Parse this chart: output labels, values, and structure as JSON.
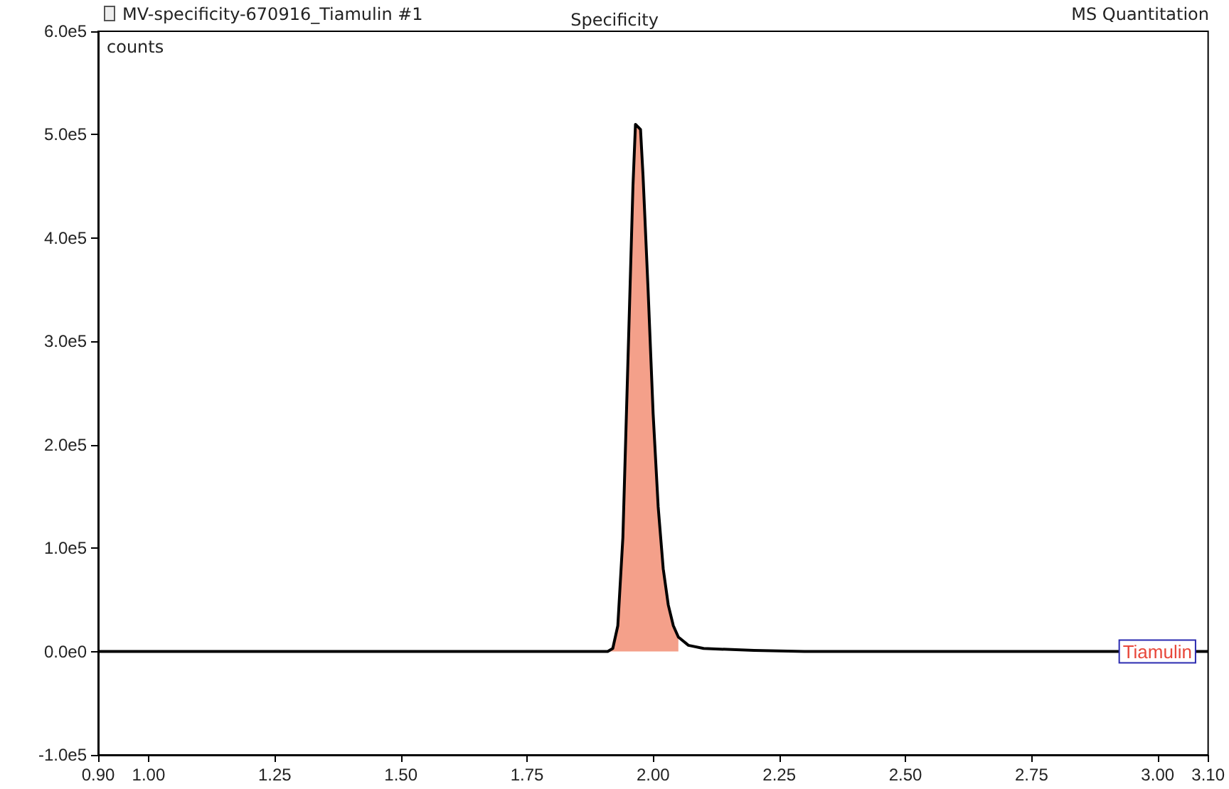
{
  "chart_data": {
    "type": "line",
    "title": "Specificity",
    "ylabel": "counts",
    "annotations": [
      "MV-specificity-670916_Tiamulin #1",
      "MS Quantitation"
    ],
    "xlim": [
      0.9,
      3.1
    ],
    "xticks": [
      {
        "value": 0.9,
        "label": "0.90"
      },
      {
        "value": 1,
        "label": "1.00"
      },
      1.25,
      {
        "value": 1.5,
        "label": "1.50"
      },
      1.75,
      {
        "value": 2,
        "label": "2.00"
      },
      2.25,
      {
        "value": 2.5,
        "label": "2.50"
      },
      2.75,
      {
        "value": 3,
        "label": "3.00"
      },
      {
        "value": 3.1,
        "label": "3.10"
      }
    ],
    "ylim": [
      -100000,
      600000
    ],
    "yticks": [
      {
        "value": -100000,
        "label": "-1.0e5"
      },
      {
        "value": 0,
        "label": "0.0e0"
      },
      {
        "value": 100000,
        "label": "1.0e5"
      },
      {
        "value": 200000,
        "label": "2.0e5"
      },
      {
        "value": 300000,
        "label": "3.0e5"
      },
      {
        "value": 400000,
        "label": "4.0e5"
      },
      {
        "value": 500000,
        "label": "5.0e5"
      },
      {
        "value": 600000,
        "label": "6.0e5"
      }
    ],
    "grid": false,
    "marker": "none",
    "line_style": "solid",
    "series": [
      {
        "type": "area",
        "color": "#f4a08a",
        "x": [
          1.91,
          1.92,
          1.93,
          1.94,
          1.95,
          1.96,
          1.965,
          1.975,
          1.98,
          1.99,
          2.0,
          2.01,
          2.02,
          2.03,
          2.04,
          2.05
        ],
        "values": [
          0,
          3000,
          25000,
          110000,
          280000,
          450000,
          510000,
          505000,
          460000,
          350000,
          230000,
          140000,
          80000,
          45000,
          25000,
          14000
        ]
      },
      {
        "name": "Tiamulin",
        "color": "#000000",
        "x": [
          0.9,
          1.25,
          1.5,
          1.9,
          1.91,
          1.92,
          1.93,
          1.94,
          1.95,
          1.96,
          1.965,
          1.975,
          1.98,
          1.99,
          2.0,
          2.01,
          2.02,
          2.03,
          2.04,
          2.05,
          2.07,
          2.1,
          2.2,
          2.3,
          3.1
        ],
        "values": [
          0,
          0,
          0,
          0,
          0,
          3000,
          25000,
          110000,
          280000,
          450000,
          510000,
          505000,
          460000,
          350000,
          230000,
          140000,
          80000,
          45000,
          25000,
          14000,
          6000,
          3000,
          1000,
          0,
          0
        ]
      }
    ]
  }
}
